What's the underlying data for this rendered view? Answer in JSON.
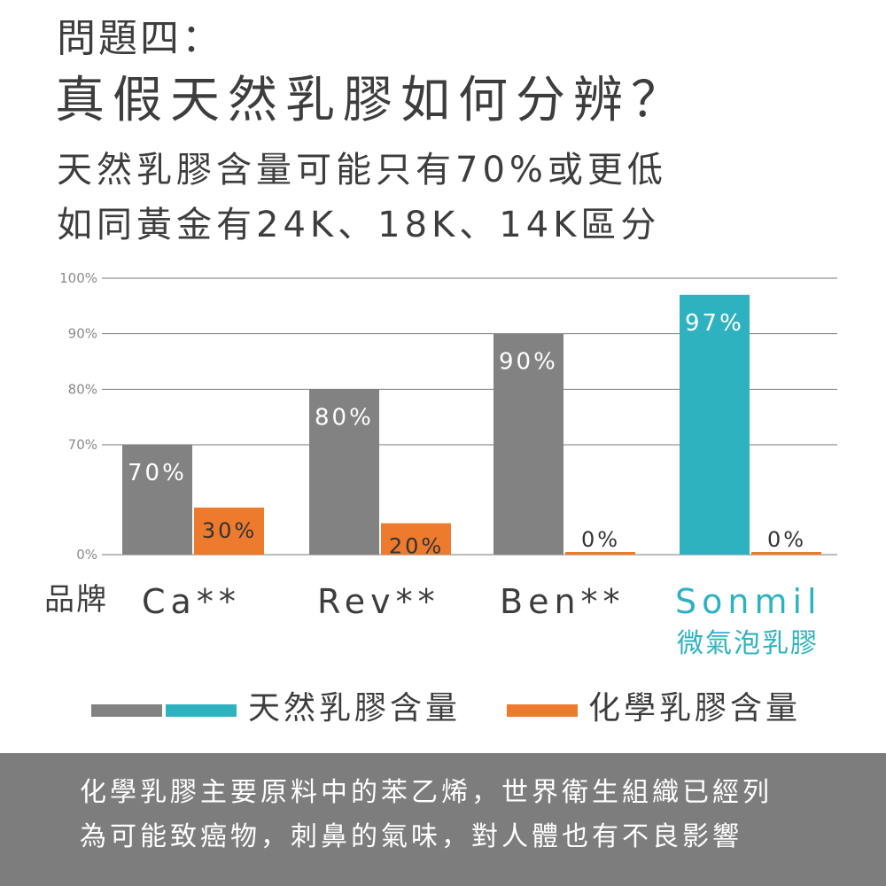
{
  "heading": {
    "question": "問題四：",
    "title": "真假天然乳膠如何分辨？",
    "subtitle_line1": "天然乳膠含量可能只有70%或更低",
    "subtitle_line2": "如同黃金有24K、18K、14K區分"
  },
  "colors": {
    "natural": "#828282",
    "sonmil": "#2fb2c0",
    "chemical": "#ee7a2e",
    "grid": "#7a7a7a",
    "footer_bg": "#7d7d7d",
    "text": "#3d3d3d"
  },
  "chart_data": {
    "type": "bar",
    "categories": [
      "Ca**",
      "Rev**",
      "Ben**",
      "Sonmil"
    ],
    "category_axis_label": "品牌",
    "highlight_category": "Sonmil",
    "highlight_sublabel": "微氣泡乳膠",
    "series": [
      {
        "name": "天然乳膠含量",
        "values": [
          70,
          80,
          90,
          97
        ],
        "labels": [
          "70%",
          "80%",
          "90%",
          "97%"
        ]
      },
      {
        "name": "化學乳膠含量",
        "values": [
          30,
          20,
          0,
          0
        ],
        "labels": [
          "30%",
          "20%",
          "0%",
          "0%"
        ]
      }
    ],
    "y_ticks": [
      "100%",
      "90%",
      "80%",
      "70%",
      "0%"
    ],
    "y_axis_note": "axis is broken: 0% baseline, then 70%–100% gridlines",
    "grid": true,
    "legend_position": "bottom"
  },
  "footer": {
    "line1": "化學乳膠主要原料中的苯乙烯，世界衛生組織已經列",
    "line2": "為可能致癌物，刺鼻的氣味，對人體也有不良影響"
  }
}
